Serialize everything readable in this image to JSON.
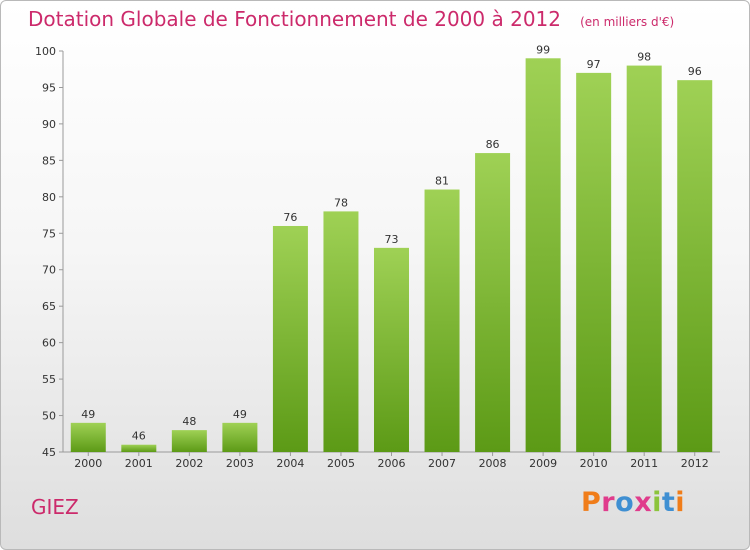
{
  "header": {
    "title": "Dotation Globale de Fonctionnement de 2000 à 2012",
    "unit": "(en milliers d'€)"
  },
  "footer": {
    "commune": "GIEZ",
    "logo": "Proxiti"
  },
  "colors": {
    "title": "#cc2a6b",
    "bar_top": "#9fd155",
    "bar_bottom": "#5c9a16",
    "logo_letters": [
      "#f07d1a",
      "#e03c8c",
      "#3f8fd2",
      "#e03c8c",
      "#8cc43c",
      "#3f8fd2",
      "#f07d1a"
    ]
  },
  "chart_data": {
    "type": "bar",
    "title": "Dotation Globale de Fonctionnement de 2000 à 2012",
    "subtitle": "(en milliers d'€)",
    "categories": [
      "2000",
      "2001",
      "2002",
      "2003",
      "2004",
      "2005",
      "2006",
      "2007",
      "2008",
      "2009",
      "2010",
      "2011",
      "2012"
    ],
    "values": [
      49,
      46,
      48,
      49,
      76,
      78,
      73,
      81,
      86,
      99,
      97,
      98,
      96
    ],
    "ylim": [
      45,
      100
    ],
    "yticks": [
      45,
      50,
      55,
      60,
      65,
      70,
      75,
      80,
      85,
      90,
      95,
      100
    ],
    "grid": false,
    "data_labels": true
  }
}
